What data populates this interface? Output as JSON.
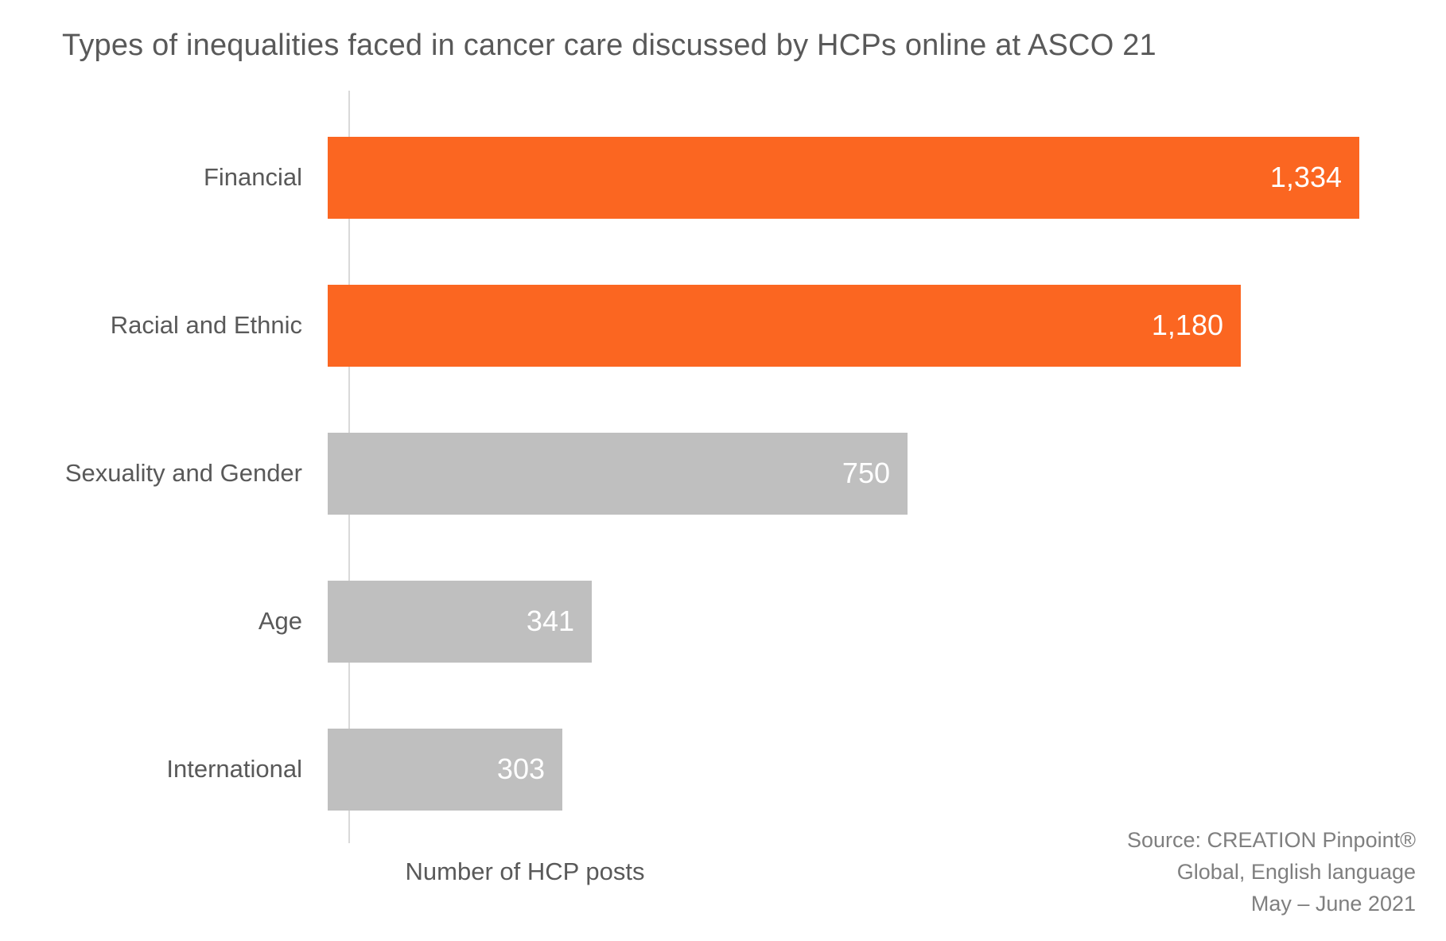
{
  "title": "Types of inequalities faced in cancer care discussed by HCPs online at ASCO 21",
  "chart_data": {
    "type": "bar",
    "orientation": "horizontal",
    "title": "Types of inequalities faced in cancer care discussed by HCPs online at ASCO 21",
    "categories": [
      "Financial",
      "Racial and Ethnic",
      "Sexuality and Gender",
      "Age",
      "International"
    ],
    "values": [
      1334,
      1180,
      750,
      341,
      303
    ],
    "value_labels": [
      "1,334",
      "1,180",
      "750",
      "341",
      "303"
    ],
    "bar_colors": [
      "#FB6621",
      "#FB6621",
      "#BFBFBF",
      "#BFBFBF",
      "#BFBFBF"
    ],
    "xlabel": "Number of HCP posts",
    "ylabel": "",
    "xlim": [
      0,
      1380
    ],
    "grid": false,
    "legend": false
  },
  "colors": {
    "highlight": "#FB6621",
    "muted": "#BFBFBF",
    "axis_line": "#D9D9D9",
    "label_text": "#595959",
    "value_text": "#FFFFFF",
    "source_text": "#7F7F7F"
  },
  "source": {
    "line1": "Source: CREATION Pinpoint®",
    "line2": "Global, English language",
    "line3": "May – June 2021"
  }
}
